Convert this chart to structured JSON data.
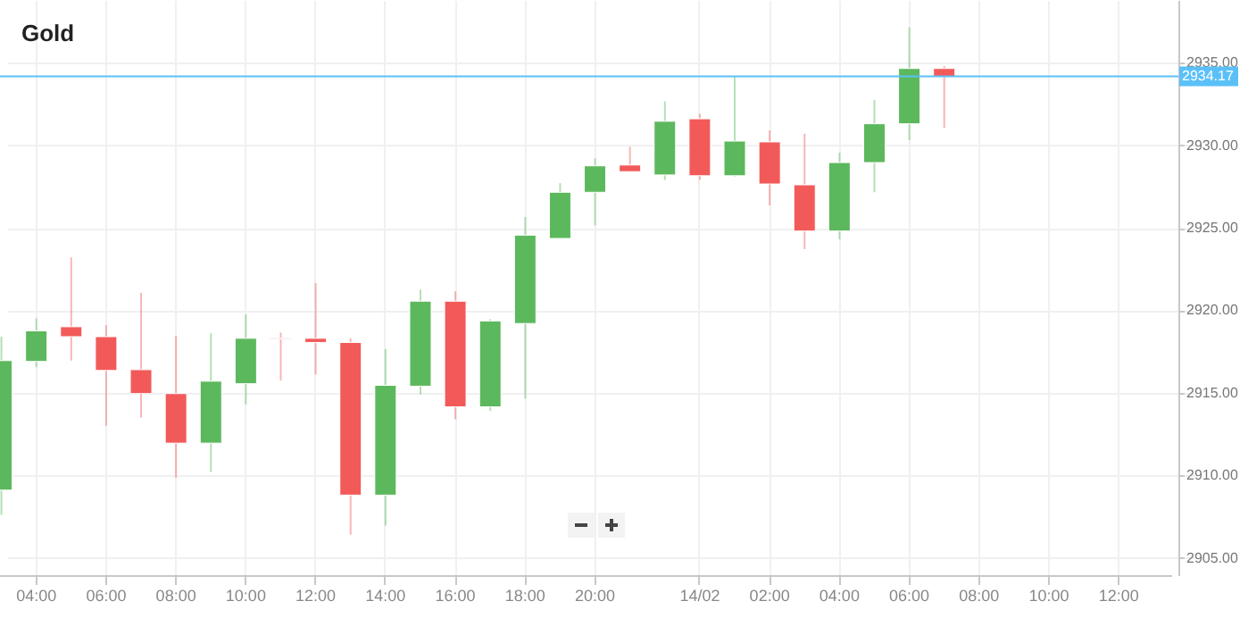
{
  "chart_data": {
    "type": "candlestick",
    "title": "Gold",
    "categories": [
      null,
      "04:00",
      null,
      "06:00",
      null,
      "08:00",
      null,
      "10:00",
      null,
      "12:00",
      null,
      "14:00",
      null,
      "16:00",
      null,
      "18:00",
      null,
      "20:00",
      null,
      null,
      "14/02",
      null,
      "02:00",
      null,
      "04:00",
      null,
      "06:00",
      null,
      "08:00",
      null,
      "10:00",
      null,
      "12:00",
      null
    ],
    "ohlc": [
      [
        2909.1,
        2918.4,
        2907.6,
        2916.95
      ],
      [
        2916.9,
        2919.5,
        2916.55,
        2918.75
      ],
      [
        2919.0,
        2923.2,
        2916.95,
        2918.4
      ],
      [
        2918.4,
        2919.1,
        2913.0,
        2916.35
      ],
      [
        2916.4,
        2921.05,
        2913.5,
        2914.95
      ],
      [
        2914.95,
        2918.45,
        2909.85,
        2911.95
      ],
      [
        2911.95,
        2918.6,
        2910.2,
        2915.7
      ],
      [
        2915.55,
        2919.75,
        2914.3,
        2918.3
      ],
      [
        2918.3,
        2918.65,
        2915.75,
        2918.25
      ],
      [
        2918.3,
        2921.65,
        2916.1,
        2918.05
      ],
      [
        2918.05,
        2918.3,
        2906.4,
        2908.8
      ],
      [
        2908.8,
        2917.65,
        2906.95,
        2915.45
      ],
      [
        2915.4,
        2921.25,
        2914.9,
        2920.55
      ],
      [
        2920.55,
        2921.15,
        2913.4,
        2914.15
      ],
      [
        2914.15,
        2919.45,
        2913.9,
        2919.35
      ],
      [
        2919.2,
        2925.65,
        2914.65,
        2924.55
      ],
      [
        2924.35,
        2927.7,
        2924.35,
        2927.15
      ],
      [
        2927.15,
        2929.2,
        2925.15,
        2928.75
      ],
      [
        2928.8,
        2929.9,
        2928.4,
        2928.4
      ],
      [
        2928.2,
        2932.65,
        2927.9,
        2931.45
      ],
      [
        2931.6,
        2931.9,
        2927.9,
        2928.15
      ],
      [
        2928.15,
        2934.15,
        2928.1,
        2930.25
      ],
      [
        2930.2,
        2930.9,
        2926.35,
        2927.65
      ],
      [
        2927.6,
        2930.7,
        2923.7,
        2924.8
      ],
      [
        2924.8,
        2929.55,
        2924.3,
        2928.95
      ],
      [
        2928.95,
        2932.75,
        2927.15,
        2931.3
      ],
      [
        2931.3,
        2937.15,
        2930.3,
        2934.65
      ],
      [
        2934.65,
        2934.8,
        2931.05,
        2934.17
      ],
      null,
      null,
      null,
      null,
      null,
      null
    ],
    "colors": [
      "#5cb85c",
      "#5cb85c",
      "#f25a5a",
      "#f25a5a",
      "#f25a5a",
      "#f25a5a",
      "#5cb85c",
      "#5cb85c",
      "#f25a5a",
      "#f25a5a",
      "#f25a5a",
      "#5cb85c",
      "#5cb85c",
      "#f25a5a",
      "#5cb85c",
      "#5cb85c",
      "#5cb85c",
      "#5cb85c",
      "#f25a5a",
      "#5cb85c",
      "#f25a5a",
      "#5cb85c",
      "#f25a5a",
      "#f25a5a",
      "#5cb85c",
      "#5cb85c",
      "#5cb85c",
      "#f25a5a",
      null,
      null,
      null,
      null,
      null,
      null
    ],
    "ylim": [
      2903.95,
      2938.8
    ],
    "yticks": [
      {
        "value": 2905,
        "label": "2905.00"
      },
      {
        "value": 2910,
        "label": "2910.00"
      },
      {
        "value": 2915,
        "label": "2915.00"
      },
      {
        "value": 2920,
        "label": "2920.00"
      },
      {
        "value": 2925,
        "label": "2925.00"
      },
      {
        "value": 2930,
        "label": "2930.00"
      },
      {
        "value": 2935,
        "label": "2935.00"
      }
    ],
    "grid": true,
    "ref_lines": [
      {
        "axis": "y",
        "value": 2934.17,
        "label": "2934.17",
        "color": "#5bc0f8"
      }
    ]
  }
}
